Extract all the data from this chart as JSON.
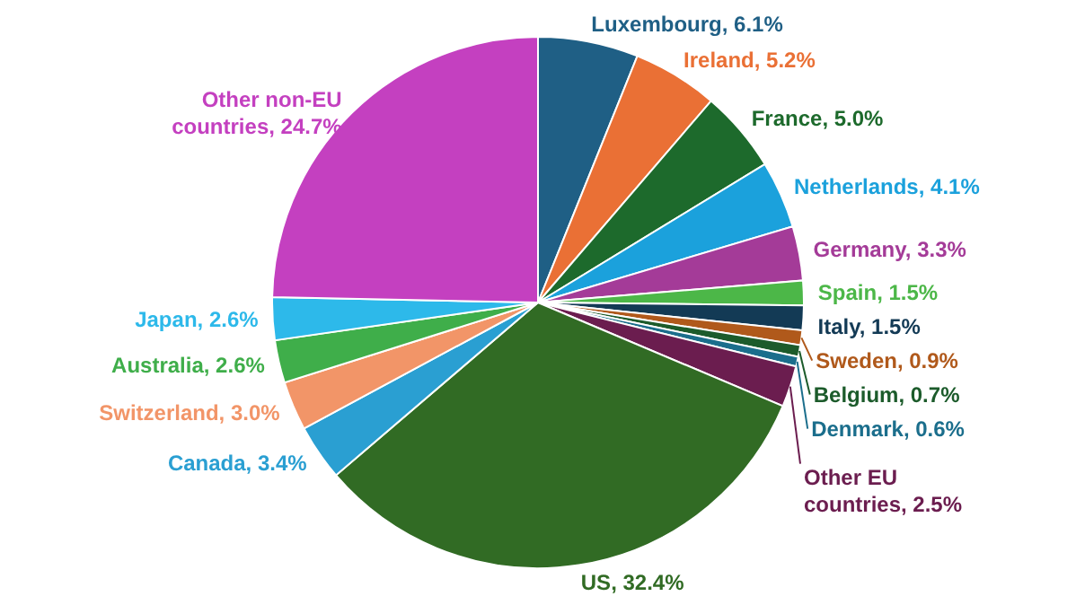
{
  "chart_data": {
    "type": "pie",
    "categories": [
      "Luxembourg",
      "Ireland",
      "France",
      "Netherlands",
      "Germany",
      "Spain",
      "Italy",
      "Sweden",
      "Belgium",
      "Denmark",
      "Other EU countries",
      "US",
      "Canada",
      "Switzerland",
      "Australia",
      "Japan",
      "Other non-EU countries"
    ],
    "values": [
      6.1,
      5.2,
      5.0,
      4.1,
      3.3,
      1.5,
      1.5,
      0.9,
      0.7,
      0.6,
      2.5,
      32.4,
      3.4,
      3.0,
      2.6,
      2.6,
      24.7
    ],
    "value_labels": [
      "6.1%",
      "5.2%",
      "5.0%",
      "4.1%",
      "3.3%",
      "1.5%",
      "1.5%",
      "0.9%",
      "0.7%",
      "0.6%",
      "2.5%",
      "32.4%",
      "3.4%",
      "3.0%",
      "2.6%",
      "2.6%",
      "24.7%"
    ],
    "colors": [
      "#1f5f85",
      "#ea7035",
      "#1d6a2c",
      "#1ba1dc",
      "#a43b98",
      "#4cb748",
      "#133a55",
      "#b0591b",
      "#1c5b2b",
      "#1b6e8c",
      "#6b1d4f",
      "#316b24",
      "#2a9fd2",
      "#f29568",
      "#3fae4a",
      "#2db9ea",
      "#c440c0"
    ]
  }
}
